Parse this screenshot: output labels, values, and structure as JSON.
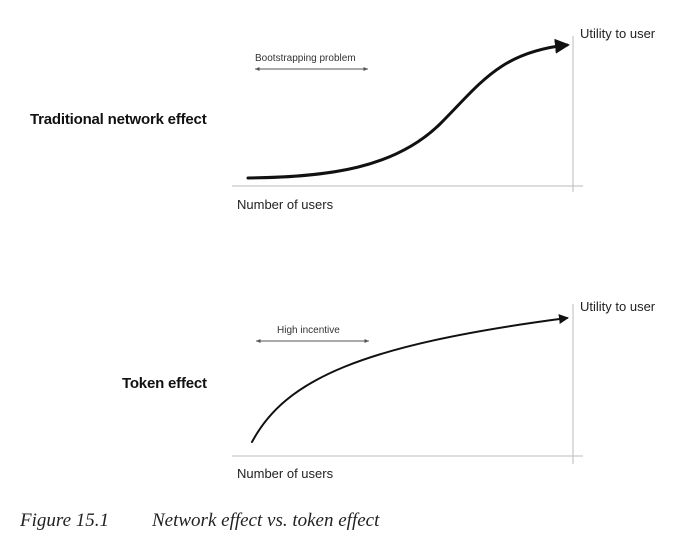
{
  "panels": [
    {
      "title": "Traditional network effect",
      "y_axis_label": "Utility to user",
      "x_axis_label": "Number of users",
      "annotation": "Bootstrapping problem",
      "curve": "s-curve"
    },
    {
      "title": "Token effect",
      "y_axis_label": "Utility to user",
      "x_axis_label": "Number of users",
      "annotation": "High incentive",
      "curve": "concave"
    }
  ],
  "caption": {
    "number": "Figure 15.1",
    "text": "Network effect vs. token effect"
  },
  "colors": {
    "curve": "#111111",
    "axis": "#bbbbbb",
    "annotation_arrow": "#555555"
  }
}
